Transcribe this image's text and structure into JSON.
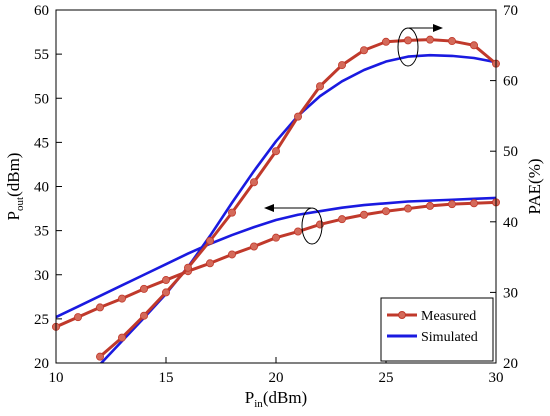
{
  "chart_data": {
    "type": "line",
    "title": "",
    "xlabel": {
      "main": "P",
      "sub": "in",
      "unit": "(dBm)"
    },
    "ylabel_left": {
      "main": "P",
      "sub": "out",
      "unit": "(dBm)"
    },
    "ylabel_right": "PAE(%)",
    "xlim": [
      10,
      30
    ],
    "ylim_left": [
      20,
      60
    ],
    "ylim_right": [
      20,
      70
    ],
    "x_ticks": [
      10,
      15,
      20,
      25,
      30
    ],
    "y_left_ticks": [
      20,
      25,
      30,
      35,
      40,
      45,
      50,
      55,
      60
    ],
    "y_right_ticks": [
      20,
      30,
      40,
      50,
      60,
      70
    ],
    "grid": false,
    "legend_position": "bottom-right",
    "legend": [
      "Measured",
      "Simulated"
    ],
    "colors": {
      "measured": "#c0392b",
      "measured_marker": "#d46a5a",
      "simulated": "#1a1ae0"
    },
    "series": [
      {
        "name": "Measured",
        "axis": "left",
        "quantity": "Pout",
        "style": "line-marker",
        "x": [
          10,
          11,
          12,
          13,
          14,
          15,
          16,
          17,
          18,
          19,
          20,
          21,
          22,
          23,
          24,
          25,
          26,
          27,
          28,
          29,
          30
        ],
        "y": [
          24.1,
          25.2,
          26.3,
          27.3,
          28.4,
          29.4,
          30.4,
          31.3,
          32.3,
          33.2,
          34.2,
          34.9,
          35.7,
          36.3,
          36.8,
          37.2,
          37.5,
          37.8,
          38.0,
          38.1,
          38.2
        ]
      },
      {
        "name": "Simulated",
        "axis": "left",
        "quantity": "Pout",
        "style": "line",
        "x": [
          10,
          11,
          12,
          13,
          14,
          15,
          16,
          17,
          18,
          19,
          20,
          21,
          22,
          23,
          24,
          25,
          26,
          27,
          28,
          29,
          30
        ],
        "y": [
          25.2,
          26.4,
          27.6,
          28.8,
          30.0,
          31.2,
          32.4,
          33.5,
          34.5,
          35.4,
          36.2,
          36.8,
          37.2,
          37.6,
          37.9,
          38.1,
          38.3,
          38.4,
          38.5,
          38.6,
          38.7
        ]
      },
      {
        "name": "Measured",
        "axis": "right",
        "quantity": "PAE",
        "style": "line-marker",
        "x": [
          12,
          13,
          14,
          15,
          16,
          17,
          18,
          19,
          20,
          21,
          22,
          23,
          24,
          25,
          26,
          27,
          28,
          29,
          30
        ],
        "y": [
          20.9,
          23.6,
          26.7,
          30.0,
          33.5,
          37.3,
          41.3,
          45.6,
          50.0,
          54.9,
          59.2,
          62.2,
          64.3,
          65.5,
          65.7,
          65.8,
          65.6,
          65.0,
          62.4
        ]
      },
      {
        "name": "Simulated",
        "axis": "right",
        "quantity": "PAE",
        "style": "line",
        "x": [
          12,
          13,
          14,
          15,
          16,
          17,
          18,
          19,
          20,
          21,
          22,
          23,
          24,
          25,
          26,
          27,
          28,
          29,
          30
        ],
        "y": [
          19.8,
          23.1,
          26.4,
          29.8,
          33.6,
          38.0,
          42.7,
          47.2,
          51.4,
          55.0,
          57.8,
          59.9,
          61.5,
          62.7,
          63.4,
          63.6,
          63.5,
          63.2,
          62.6
        ]
      }
    ]
  }
}
